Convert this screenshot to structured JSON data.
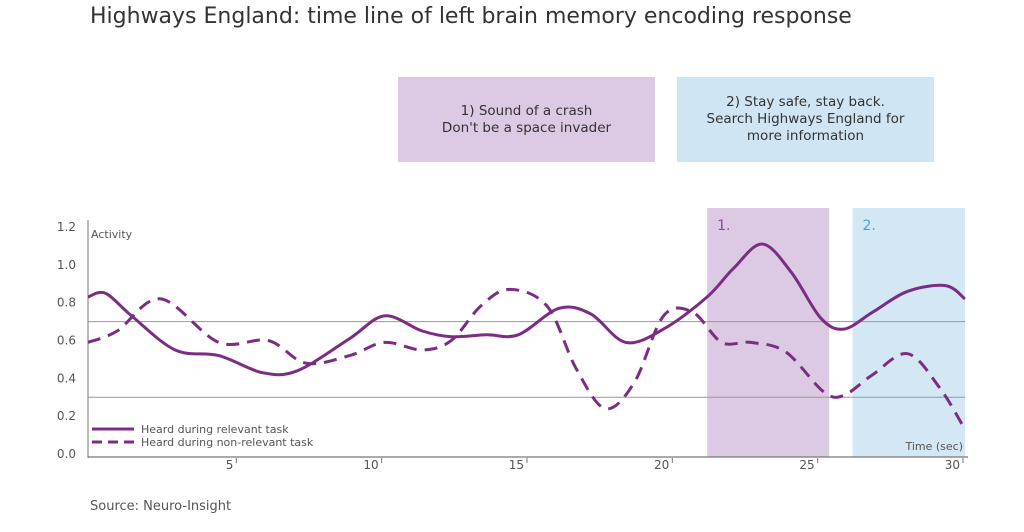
{
  "title": "Highways England: time line of left brain memory encoding response",
  "callouts": [
    {
      "id": "1",
      "line1": "1) Sound of a crash",
      "line2": "Don't be a space invader",
      "line3": "",
      "color": "#dcc9e3"
    },
    {
      "id": "2",
      "line1": "2) Stay safe, stay back.",
      "line2": "Search Highways England for",
      "line3": "more information",
      "color": "#cfe5f3"
    }
  ],
  "source": "Source: Neuro-Insight",
  "chart_data": {
    "type": "line",
    "ylabel": "Activity",
    "xlabel": "Time (sec)",
    "xlim": [
      0,
      30
    ],
    "ylim": [
      0,
      1.2
    ],
    "yticks": [
      "0.0",
      "0.2",
      "0.4",
      "0.6",
      "0.8",
      "1.0",
      "1.2"
    ],
    "xticks": [
      "5",
      "10",
      "15",
      "20",
      "25",
      "30"
    ],
    "reference_lines": [
      0.7,
      0.3
    ],
    "regions": [
      {
        "label": "1.",
        "x_start": 21.3,
        "x_end": 25.5,
        "color": "#dcc9e3",
        "label_color": "#8a4a9a"
      },
      {
        "label": "2.",
        "x_start": 26.3,
        "x_end": 30.5,
        "color": "#d3e7f4",
        "label_color": "#4aa3d2"
      }
    ],
    "series": [
      {
        "name": "Heard during relevant task",
        "color": "#7b2d83",
        "dash": "solid",
        "x": [
          0,
          0.6,
          1.5,
          3,
          4.5,
          6,
          7.2,
          9,
          10.2,
          11.5,
          12.5,
          13.7,
          14.8,
          16.2,
          17.3,
          18.5,
          19.8,
          21.3,
          22.2,
          23.2,
          24.2,
          25.2,
          26,
          27,
          28.2,
          29.5,
          30.3
        ],
        "y": [
          0.83,
          0.85,
          0.73,
          0.55,
          0.52,
          0.43,
          0.44,
          0.61,
          0.73,
          0.65,
          0.62,
          0.63,
          0.63,
          0.77,
          0.74,
          0.59,
          0.66,
          0.83,
          0.98,
          1.11,
          0.96,
          0.72,
          0.66,
          0.75,
          0.86,
          0.89,
          0.82
        ]
      },
      {
        "name": "Heard during non-relevant task",
        "color": "#7b2d83",
        "dash": "dashed",
        "x": [
          0,
          1,
          2.5,
          4.5,
          6.2,
          7.5,
          9,
          10.2,
          11.5,
          12.5,
          13.5,
          14.5,
          15.8,
          16.8,
          17.8,
          18.8,
          19.8,
          20.8,
          21.8,
          22.8,
          24,
          25.3,
          26,
          27,
          28.2,
          29.3,
          30.3
        ],
        "y": [
          0.59,
          0.65,
          0.82,
          0.59,
          0.6,
          0.48,
          0.52,
          0.59,
          0.55,
          0.6,
          0.78,
          0.87,
          0.78,
          0.45,
          0.24,
          0.38,
          0.73,
          0.75,
          0.59,
          0.59,
          0.54,
          0.33,
          0.31,
          0.42,
          0.53,
          0.35,
          0.13
        ]
      }
    ],
    "legend_position": "bottom-left"
  }
}
